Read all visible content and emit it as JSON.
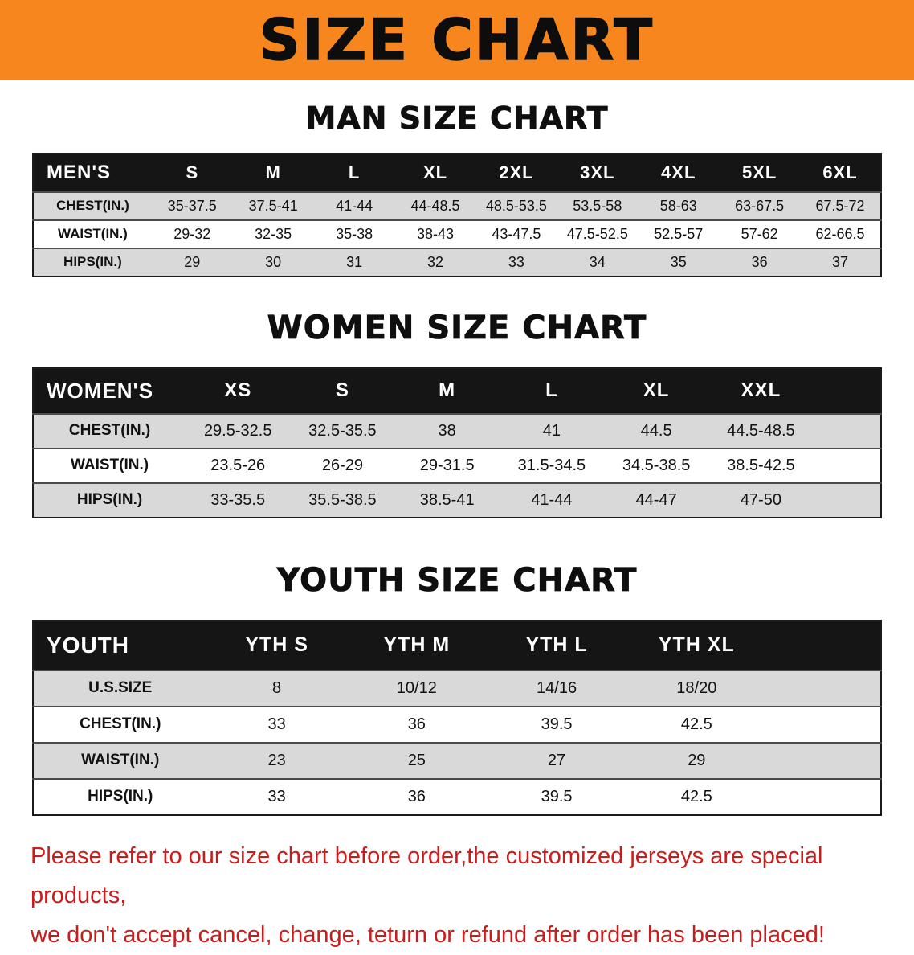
{
  "banner": {
    "title": "SIZE CHART",
    "bg_color": "#f6861d"
  },
  "men": {
    "heading": "MAN SIZE CHART",
    "table": {
      "header": [
        "MEN'S",
        "S",
        "M",
        "L",
        "XL",
        "2XL",
        "3XL",
        "4XL",
        "5XL",
        "6XL"
      ],
      "rows": [
        [
          "CHEST(IN.)",
          "35-37.5",
          "37.5-41",
          "41-44",
          "44-48.5",
          "48.5-53.5",
          "53.5-58",
          "58-63",
          "63-67.5",
          "67.5-72"
        ],
        [
          "WAIST(IN.)",
          "29-32",
          "32-35",
          "35-38",
          "38-43",
          "43-47.5",
          "47.5-52.5",
          "52.5-57",
          "57-62",
          "62-66.5"
        ],
        [
          "HIPS(IN.)",
          "29",
          "30",
          "31",
          "32",
          "33",
          "34",
          "35",
          "36",
          "37"
        ]
      ]
    }
  },
  "women": {
    "heading": "WOMEN SIZE CHART",
    "table": {
      "header": [
        "WOMEN'S",
        "XS",
        "S",
        "M",
        "L",
        "XL",
        "XXL"
      ],
      "rows": [
        [
          "CHEST(IN.)",
          "29.5-32.5",
          "32.5-35.5",
          "38",
          "41",
          "44.5",
          "44.5-48.5"
        ],
        [
          "WAIST(IN.)",
          "23.5-26",
          "26-29",
          "29-31.5",
          "31.5-34.5",
          "34.5-38.5",
          "38.5-42.5"
        ],
        [
          "HIPS(IN.)",
          "33-35.5",
          "35.5-38.5",
          "38.5-41",
          "41-44",
          "44-47",
          "47-50"
        ]
      ]
    }
  },
  "youth": {
    "heading": "YOUTH SIZE CHART",
    "table": {
      "header": [
        "YOUTH",
        "YTH S",
        "YTH M",
        "YTH L",
        "YTH XL"
      ],
      "rows": [
        [
          "U.S.SIZE",
          "8",
          "10/12",
          "14/16",
          "18/20"
        ],
        [
          "CHEST(IN.)",
          "33",
          "36",
          "39.5",
          "42.5"
        ],
        [
          "WAIST(IN.)",
          "23",
          "25",
          "27",
          "29"
        ],
        [
          "HIPS(IN.)",
          "33",
          "36",
          "39.5",
          "42.5"
        ]
      ]
    }
  },
  "note": {
    "color": "#cb1b1b",
    "line1": "Please refer to our size chart before order,the customized jerseys are special products,",
    "line2": "we don't accept cancel, change, teturn or refund after order has been placed!"
  }
}
